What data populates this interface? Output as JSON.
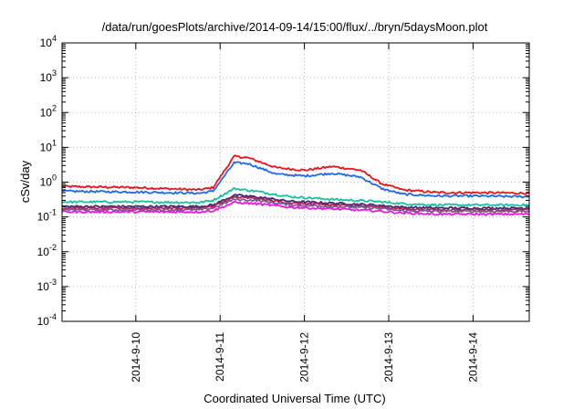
{
  "chart_data": {
    "type": "line",
    "title": "/data/run/goesPlots/archive/2014-09-14/15:00/flux/../bryn/5daysMoon.plot",
    "xlabel": "Coordinated Universal Time (UTC)",
    "ylabel": "cSv/day",
    "y_scale": "log",
    "ylim": [
      0.0001,
      10000
    ],
    "y_ticks": [
      {
        "base": "10",
        "exp": "4"
      },
      {
        "base": "10",
        "exp": "3"
      },
      {
        "base": "10",
        "exp": "2"
      },
      {
        "base": "10",
        "exp": "1"
      },
      {
        "base": "10",
        "exp": "0"
      },
      {
        "base": "10",
        "exp": "-1"
      },
      {
        "base": "10",
        "exp": "-2"
      },
      {
        "base": "10",
        "exp": "-3"
      },
      {
        "base": "10",
        "exp": "-4"
      }
    ],
    "xlim": [
      "2014-09-09T03:00",
      "2014-09-14T16:00"
    ],
    "x_ticks": [
      "2014-9-10",
      "2014-9-11",
      "2014-9-12",
      "2014-9-13",
      "2014-9-14"
    ],
    "grid": "dotted",
    "series": [
      {
        "color": "#e8141c",
        "x": [
          "2014-09-09T03:00",
          "2014-09-10T00:00",
          "2014-09-10T18:00",
          "2014-09-10T22:00",
          "2014-09-11T04:00",
          "2014-09-11T08:00",
          "2014-09-11T16:00",
          "2014-09-12T00:00",
          "2014-09-12T08:00",
          "2014-09-12T16:00",
          "2014-09-12T22:00",
          "2014-09-13T04:00",
          "2014-09-13T14:00",
          "2014-09-14T00:00",
          "2014-09-14T16:00"
        ],
        "values": [
          0.75,
          0.7,
          0.6,
          0.7,
          5.5,
          5,
          2.6,
          2.2,
          2.8,
          2.2,
          0.9,
          0.6,
          0.5,
          0.5,
          0.48
        ]
      },
      {
        "color": "#1f6ae8",
        "x": [
          "2014-09-09T03:00",
          "2014-09-10T00:00",
          "2014-09-10T18:00",
          "2014-09-10T22:00",
          "2014-09-11T04:00",
          "2014-09-11T08:00",
          "2014-09-11T16:00",
          "2014-09-12T00:00",
          "2014-09-12T08:00",
          "2014-09-12T16:00",
          "2014-09-12T22:00",
          "2014-09-13T04:00",
          "2014-09-13T14:00",
          "2014-09-14T00:00",
          "2014-09-14T16:00"
        ],
        "values": [
          0.55,
          0.52,
          0.48,
          0.55,
          3.6,
          3.4,
          1.7,
          1.5,
          1.8,
          1.4,
          0.65,
          0.45,
          0.4,
          0.4,
          0.38
        ]
      },
      {
        "color": "#18c0a0",
        "x": [
          "2014-09-09T03:00",
          "2014-09-10T00:00",
          "2014-09-10T18:00",
          "2014-09-10T22:00",
          "2014-09-11T04:00",
          "2014-09-11T10:00",
          "2014-09-11T20:00",
          "2014-09-12T08:00",
          "2014-09-12T20:00",
          "2014-09-13T04:00",
          "2014-09-13T14:00",
          "2014-09-14T00:00",
          "2014-09-14T16:00"
        ],
        "values": [
          0.27,
          0.27,
          0.26,
          0.3,
          0.65,
          0.55,
          0.38,
          0.32,
          0.28,
          0.24,
          0.22,
          0.22,
          0.22
        ]
      },
      {
        "color": "#3a2a78",
        "x": [
          "2014-09-09T03:00",
          "2014-09-10T00:00",
          "2014-09-10T18:00",
          "2014-09-10T22:00",
          "2014-09-11T04:00",
          "2014-09-11T10:00",
          "2014-09-11T20:00",
          "2014-09-12T08:00",
          "2014-09-12T20:00",
          "2014-09-13T04:00",
          "2014-09-13T14:00",
          "2014-09-14T00:00",
          "2014-09-14T16:00"
        ],
        "values": [
          0.2,
          0.2,
          0.2,
          0.22,
          0.42,
          0.38,
          0.28,
          0.25,
          0.22,
          0.19,
          0.18,
          0.18,
          0.18
        ]
      },
      {
        "color": "#b02050",
        "x": [
          "2014-09-09T03:00",
          "2014-09-10T00:00",
          "2014-09-10T18:00",
          "2014-09-10T22:00",
          "2014-09-11T04:00",
          "2014-09-11T10:00",
          "2014-09-11T20:00",
          "2014-09-12T08:00",
          "2014-09-12T20:00",
          "2014-09-13T04:00",
          "2014-09-13T14:00",
          "2014-09-14T00:00",
          "2014-09-14T16:00"
        ],
        "values": [
          0.18,
          0.18,
          0.18,
          0.2,
          0.37,
          0.34,
          0.25,
          0.22,
          0.2,
          0.17,
          0.16,
          0.16,
          0.16
        ]
      },
      {
        "color": "#7a5a98",
        "x": [
          "2014-09-09T03:00",
          "2014-09-10T00:00",
          "2014-09-10T18:00",
          "2014-09-10T22:00",
          "2014-09-11T04:00",
          "2014-09-11T10:00",
          "2014-09-11T20:00",
          "2014-09-12T08:00",
          "2014-09-12T20:00",
          "2014-09-13T04:00",
          "2014-09-13T14:00",
          "2014-09-14T00:00",
          "2014-09-14T16:00"
        ],
        "values": [
          0.16,
          0.16,
          0.16,
          0.18,
          0.32,
          0.3,
          0.22,
          0.2,
          0.18,
          0.15,
          0.145,
          0.145,
          0.145
        ]
      },
      {
        "color": "#e81cd8",
        "x": [
          "2014-09-09T03:00",
          "2014-09-10T00:00",
          "2014-09-10T18:00",
          "2014-09-10T22:00",
          "2014-09-11T04:00",
          "2014-09-11T10:00",
          "2014-09-11T20:00",
          "2014-09-12T08:00",
          "2014-09-12T20:00",
          "2014-09-13T04:00",
          "2014-09-13T14:00",
          "2014-09-14T00:00",
          "2014-09-14T16:00"
        ],
        "values": [
          0.14,
          0.14,
          0.14,
          0.15,
          0.26,
          0.24,
          0.19,
          0.17,
          0.15,
          0.13,
          0.12,
          0.12,
          0.12
        ]
      }
    ]
  }
}
